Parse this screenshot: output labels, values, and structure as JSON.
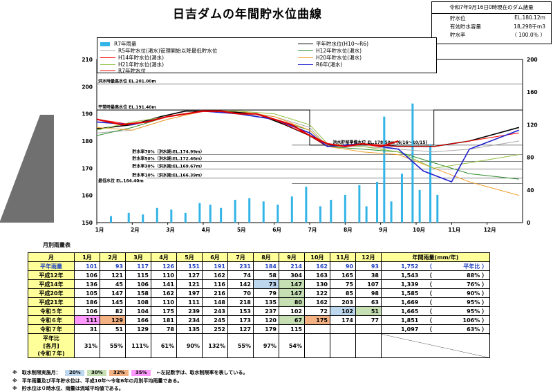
{
  "title": "日吉ダムの年間貯水位曲線",
  "info": {
    "header": "令和7年9月16日0時現在のダム諸量",
    "rows": [
      {
        "label": "貯水位",
        "value": "EL.180.12m"
      },
      {
        "label": "有効貯水容量",
        "value": "18,298千m3"
      },
      {
        "label": "貯水率",
        "value": "（ 100.0％ ）"
      }
    ]
  },
  "chart_data": {
    "type": "line",
    "title": "日吉ダムの年間貯水位曲線",
    "ylabel": "貯水位 (EL.m)",
    "y2label": "雨量(mm)",
    "ylim": [
      150,
      210
    ],
    "y2lim": [
      0,
      200
    ],
    "yticks": [
      150,
      160,
      170,
      180,
      190,
      200,
      210
    ],
    "y2ticks": [
      0,
      40,
      80,
      120,
      160,
      200
    ],
    "xticks": [
      "1月",
      "2月",
      "3月",
      "4月",
      "5月",
      "6月",
      "7月",
      "8月",
      "9月",
      "10月",
      "11月",
      "12月"
    ],
    "reference_lines": [
      {
        "label": "洪水時最高水位 EL.201.00m",
        "y": 201.0
      },
      {
        "label": "平常時最高水位 EL.191.40m",
        "y": 191.4
      },
      {
        "label": "洪水貯留準備水位 EL.178.50m (6/16～10/15)",
        "y": 178.5
      },
      {
        "label": "貯水率70%（洪水期:EL.174.99m）",
        "y": 174.99
      },
      {
        "label": "貯水率50%（洪水期:EL.172.46m）",
        "y": 172.46
      },
      {
        "label": "貯水率30%（洪水期:EL.169.67m）",
        "y": 169.67
      },
      {
        "label": "貯水率10%（洪水期:EL.166.39m）",
        "y": 166.39
      },
      {
        "label": "最低水位 EL.164.40m",
        "y": 164.4
      }
    ],
    "series": [
      {
        "name": "平年貯水位(H10～R6)",
        "color": "#000000",
        "x": [
          0,
          1,
          1.8,
          2.5,
          3.5,
          4.5,
          5.3,
          6.0,
          6.5,
          7.5,
          8.5,
          9.5,
          10.5,
          11.9
        ],
        "y": [
          184.5,
          186,
          189,
          191,
          191,
          190,
          186,
          182,
          178,
          179,
          178,
          178,
          180,
          185
        ]
      },
      {
        "name": "R5年貯水位(渇水)管理開始以降最低貯水位",
        "color": "#aaaaaa",
        "x": [
          0,
          1,
          2,
          3,
          4,
          5,
          6,
          6.5,
          7.5,
          8.5,
          9.5,
          10.5,
          11.9
        ],
        "y": [
          183,
          184,
          188,
          191,
          190,
          189,
          185,
          178,
          178,
          177,
          176,
          177,
          180
        ]
      },
      {
        "name": "H12年貯水位(渇水)",
        "color": "#2e8b2e",
        "x": [
          0,
          1,
          2,
          3,
          4,
          5,
          6,
          6.5,
          7.5,
          8.5,
          9.5,
          10.5,
          11.9
        ],
        "y": [
          182,
          185,
          189,
          191,
          190,
          188,
          184,
          178,
          177,
          176,
          172,
          168,
          166
        ]
      },
      {
        "name": "H14年貯水位(渇水)",
        "color": "#ff0000",
        "x": [
          0,
          1,
          2,
          3,
          4,
          5,
          6,
          6.5,
          7.5,
          8.5,
          9.5,
          10.5,
          11.9
        ],
        "y": [
          188,
          186,
          189,
          191,
          190,
          188,
          182,
          178,
          179,
          178,
          178,
          180,
          183
        ]
      },
      {
        "name": "H20年貯水位(渇水)",
        "color": "#f0a030",
        "x": [
          0,
          1,
          2,
          3,
          4,
          5,
          6,
          6.5,
          7.5,
          8.5,
          9.5,
          10.5,
          11.9
        ],
        "y": [
          185,
          184,
          188,
          191,
          191,
          189,
          184,
          178,
          176,
          175,
          170,
          165,
          160
        ]
      },
      {
        "name": "H21年貯水位(渇水)",
        "color": "#90c040",
        "x": [
          0,
          1,
          2,
          3,
          4,
          5,
          6,
          6.5,
          7.5,
          8.5,
          9.5,
          10.5,
          11.9
        ],
        "y": [
          184,
          187,
          189,
          191,
          191,
          190,
          186,
          179,
          178,
          176,
          170,
          172,
          175
        ]
      },
      {
        "name": "R6年(渇水)",
        "color": "#2020d0",
        "x": [
          0,
          1,
          2,
          3,
          4,
          5,
          6,
          6.5,
          7.5,
          8.5,
          9.2,
          10,
          10.5,
          11.9
        ],
        "y": [
          187,
          186,
          189,
          191,
          190,
          188,
          183,
          178,
          179,
          177,
          169,
          165,
          177,
          184
        ]
      },
      {
        "name": "R7年貯水位",
        "color": "#e00000",
        "x": [
          0,
          0.7,
          1.4,
          2.0,
          2.5,
          3.0,
          3.5,
          4.0,
          4.5,
          5.0,
          5.5,
          6.0,
          6.5,
          7.0,
          7.5,
          8.0,
          8.5
        ],
        "y": [
          188,
          186,
          187,
          189,
          190,
          191,
          191,
          190,
          190,
          188,
          186,
          182,
          179,
          178,
          179,
          178,
          180
        ]
      }
    ],
    "rain_mm": [
      [
        0.4,
        8
      ],
      [
        0.9,
        12
      ],
      [
        1.3,
        10
      ],
      [
        1.7,
        18
      ],
      [
        2.1,
        16
      ],
      [
        2.5,
        12
      ],
      [
        2.9,
        24
      ],
      [
        3.2,
        22
      ],
      [
        3.5,
        18
      ],
      [
        3.9,
        28
      ],
      [
        4.3,
        30
      ],
      [
        4.7,
        26
      ],
      [
        5.1,
        22
      ],
      [
        5.5,
        32
      ],
      [
        5.9,
        44
      ],
      [
        6.3,
        20
      ],
      [
        6.6,
        28
      ],
      [
        7.0,
        34
      ],
      [
        7.4,
        46
      ],
      [
        7.6,
        20
      ],
      [
        7.9,
        50
      ],
      [
        8.1,
        130
      ],
      [
        8.3,
        26
      ],
      [
        8.6,
        60
      ],
      [
        8.9,
        146
      ],
      [
        9.1,
        40
      ],
      [
        9.4,
        96
      ],
      [
        9.6,
        34
      ]
    ]
  },
  "legend": [
    {
      "label": "R7年雨量",
      "type": "bar",
      "color": "#33b4e6"
    },
    {
      "label": "R5年貯水位(渇水)管理開始以降最低貯水位",
      "color": "#aaaaaa"
    },
    {
      "label": "H14年貯水位(渇水)",
      "color": "#ff0000"
    },
    {
      "label": "H21年貯水位(渇水)",
      "color": "#90c040"
    },
    {
      "label": "R7年貯水位",
      "color": "#e00000"
    },
    {
      "label": "平年貯水位(H10～R6)",
      "color": "#000000"
    },
    {
      "label": "H12年貯水位(渇水)",
      "color": "#2e8b2e"
    },
    {
      "label": "H20年貯水位(渇水)",
      "color": "#f0a030"
    },
    {
      "label": "R6年(渇水)",
      "color": "#2020d0"
    }
  ],
  "table": {
    "caption": "月別雨量表",
    "headers": [
      "月",
      "1月",
      "2月",
      "3月",
      "4月",
      "5月",
      "6月",
      "7月",
      "8月",
      "9月",
      "10月",
      "11月",
      "12月",
      "年間雨量(mm/年)"
    ],
    "rows": [
      {
        "label": "平年雨量",
        "values": [
          "101",
          "93",
          "117",
          "126",
          "151",
          "191",
          "231",
          "184",
          "214",
          "162",
          "90",
          "93"
        ],
        "total": "1,752",
        "ratio": "平年比"
      },
      {
        "label": "平成12年",
        "values": [
          "106",
          "121",
          "115",
          "110",
          "127",
          "162",
          "74",
          "58",
          "304",
          "163",
          "165",
          "38"
        ],
        "total": "1,543",
        "ratio": "88%"
      },
      {
        "label": "平成14年",
        "values": [
          "136",
          "45",
          "106",
          "141",
          "121",
          "116",
          "142",
          "73",
          "147",
          "130",
          "75",
          "107"
        ],
        "total": "1,339",
        "ratio": "76%"
      },
      {
        "label": "平成20年",
        "values": [
          "105",
          "147",
          "158",
          "162",
          "197",
          "216",
          "70",
          "79",
          "147",
          "122",
          "85",
          "98"
        ],
        "total": "1,585",
        "ratio": "90%"
      },
      {
        "label": "平成21年",
        "values": [
          "186",
          "145",
          "108",
          "110",
          "111",
          "148",
          "218",
          "135",
          "80",
          "162",
          "203",
          "63"
        ],
        "total": "1,669",
        "ratio": "95%"
      },
      {
        "label": "令和５年",
        "values": [
          "106",
          "82",
          "104",
          "175",
          "239",
          "243",
          "153",
          "237",
          "102",
          "72",
          "102",
          "51"
        ],
        "total": "1,665",
        "ratio": "95%"
      },
      {
        "label": "令和６年",
        "values": [
          "111",
          "129",
          "166",
          "181",
          "234",
          "245",
          "173",
          "120",
          "67",
          "175",
          "174",
          "77"
        ],
        "total": "1,851",
        "ratio": "106%"
      },
      {
        "label": "令和７年",
        "values": [
          "31",
          "51",
          "129",
          "78",
          "135",
          "252",
          "127",
          "179",
          "115",
          "",
          "",
          ""
        ],
        "total": "1,097",
        "ratio": "63%"
      }
    ],
    "ratio_label": "平年比\n[各月]\n(令和７年)",
    "ratio_values": [
      "31%",
      "55%",
      "111%",
      "61%",
      "90%",
      "132%",
      "55%",
      "97%",
      "54%",
      "",
      "",
      ""
    ]
  },
  "notes": {
    "n1_prefix": "※　取水制限実施月：",
    "swatches": [
      {
        "label": "20%",
        "color": "#bdd7ee"
      },
      {
        "label": "30%",
        "color": "#c6e0b4"
      },
      {
        "label": "32%",
        "color": "#f4b183"
      },
      {
        "label": "35%",
        "color": "#ff99ff"
      }
    ],
    "n1_suffix": "←左記数字は、取水制限率を表している。",
    "n2": "※　平年雨量及び平年貯水位は、平成10年～令和6年の月別平均雨量である。",
    "n3": "※　貯水位は０時水位、雨量は流域平均値である。"
  }
}
